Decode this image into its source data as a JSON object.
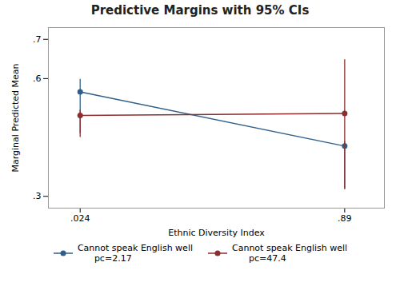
{
  "chart_data": {
    "type": "line",
    "title": "Predictive Margins with 95% CIs",
    "xlabel": "Ethnic Diversity Index",
    "ylabel": "Marginal Predicted Mean",
    "xlim": [
      -0.08,
      1.02
    ],
    "ylim": [
      0.27,
      0.73
    ],
    "xticks": [
      {
        "value": 0.024,
        "label": ".024"
      },
      {
        "value": 0.89,
        "label": ".89"
      }
    ],
    "yticks": [
      {
        "value": 0.3,
        "label": ".3"
      },
      {
        "value": 0.6,
        "label": ".6"
      },
      {
        "value": 0.7,
        "label": ".7"
      }
    ],
    "grid": false,
    "legend": "bottom",
    "marker": "circle",
    "series": [
      {
        "name": "Cannot speak English well\n      pc=2.17",
        "color": "#2e5f8a",
        "x": [
          0.024,
          0.89
        ],
        "values": [
          0.566,
          0.428
        ],
        "lower": [
          0.46,
          0.318
        ],
        "upper": [
          0.598,
          0.44
        ]
      },
      {
        "name": "Cannot speak English well\n      pc=47.4",
        "color": "#8b2e2e",
        "x": [
          0.024,
          0.89
        ],
        "values": [
          0.506,
          0.511
        ],
        "lower": [
          0.45,
          0.318
        ],
        "upper": [
          0.52,
          0.648
        ]
      }
    ]
  }
}
